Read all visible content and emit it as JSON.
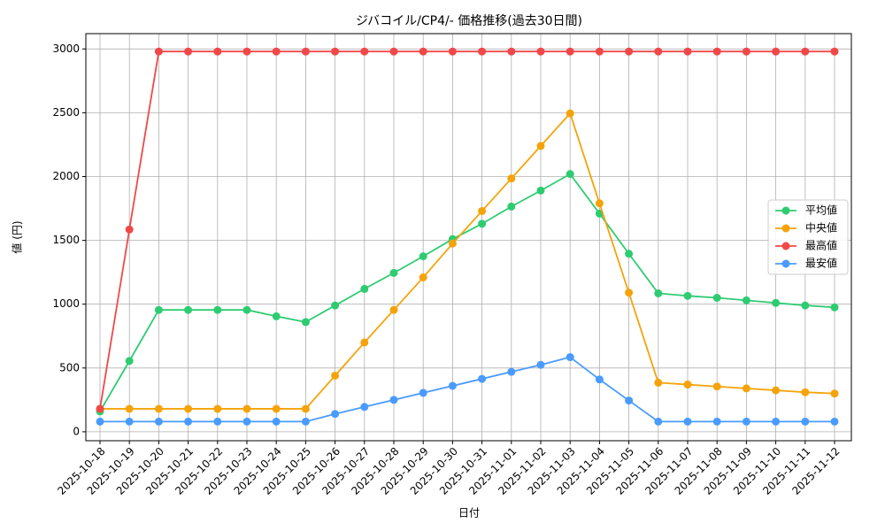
{
  "chart_data": {
    "type": "line",
    "title": "ジバコイル/CP4/- 価格推移(過去30日間)",
    "x_label": "日付",
    "y_label": "値 (円)",
    "categories": [
      "2025-10-18",
      "2025-10-19",
      "2025-10-20",
      "2025-10-21",
      "2025-10-22",
      "2025-10-23",
      "2025-10-24",
      "2025-10-25",
      "2025-10-26",
      "2025-10-27",
      "2025-10-28",
      "2025-10-29",
      "2025-10-30",
      "2025-10-31",
      "2025-11-01",
      "2025-11-02",
      "2025-11-03",
      "2025-11-04",
      "2025-11-05",
      "2025-11-06",
      "2025-11-07",
      "2025-11-08",
      "2025-11-09",
      "2025-11-10",
      "2025-11-11",
      "2025-11-12"
    ],
    "series": [
      {
        "name": "平均値",
        "color": "#2ecc71",
        "values": [
          160,
          555,
          955,
          955,
          955,
          955,
          905,
          860,
          990,
          1120,
          1245,
          1375,
          1510,
          1630,
          1765,
          1890,
          2020,
          1710,
          1395,
          1085,
          1065,
          1050,
          1030,
          1010,
          990,
          975
        ]
      },
      {
        "name": "中央値",
        "color": "#f5a30a",
        "values": [
          180,
          180,
          180,
          180,
          180,
          180,
          180,
          180,
          440,
          700,
          955,
          1210,
          1475,
          1730,
          1985,
          2240,
          2495,
          1790,
          1090,
          385,
          370,
          355,
          340,
          325,
          310,
          300
        ]
      },
      {
        "name": "最高値",
        "color": "#f04848",
        "values": [
          180,
          1585,
          2980,
          2980,
          2980,
          2980,
          2980,
          2980,
          2980,
          2980,
          2980,
          2980,
          2980,
          2980,
          2980,
          2980,
          2980,
          2980,
          2980,
          2980,
          2980,
          2980,
          2980,
          2980,
          2980,
          2980
        ]
      },
      {
        "name": "最安値",
        "color": "#4a9bff",
        "values": [
          80,
          80,
          80,
          80,
          80,
          80,
          80,
          80,
          140,
          195,
          250,
          305,
          360,
          415,
          470,
          525,
          585,
          410,
          245,
          80,
          80,
          80,
          80,
          80,
          80,
          80
        ]
      }
    ],
    "ylim": [
      -70,
      3120
    ],
    "yticks": [
      0,
      500,
      1000,
      1500,
      2000,
      2500,
      3000
    ],
    "grid": true,
    "legend": "right"
  }
}
